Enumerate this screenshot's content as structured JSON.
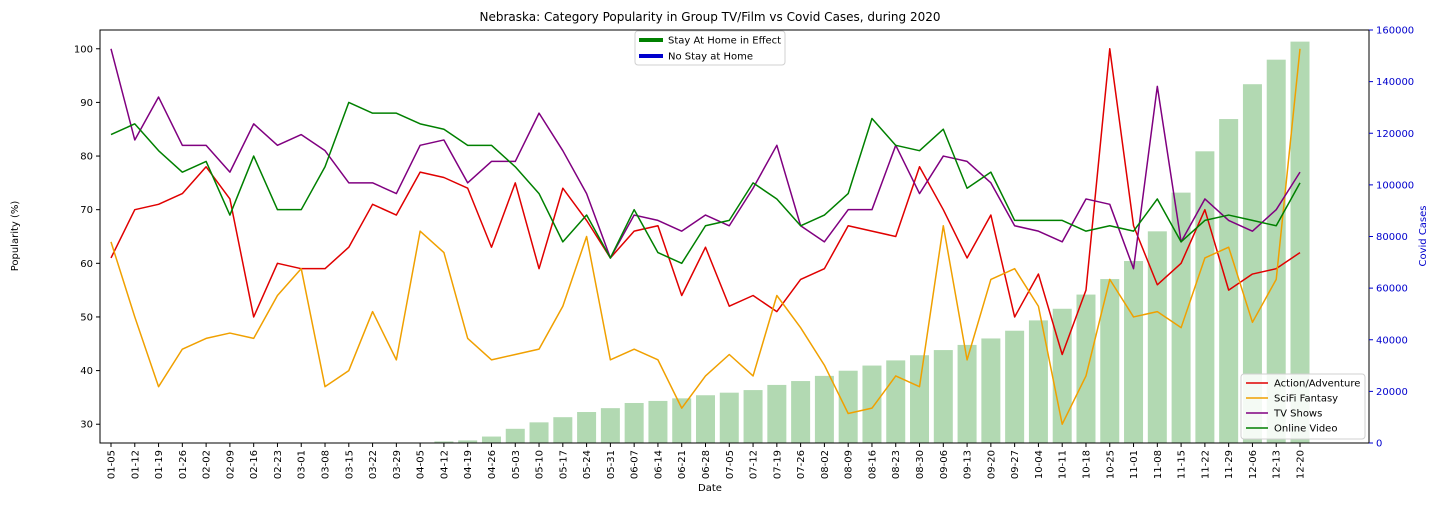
{
  "chart_data": {
    "type": "line",
    "title": "Nebraska: Category Popularity in Group TV/Film vs Covid Cases, during 2020",
    "xlabel": "Date",
    "ylabel": "Popularity (%)",
    "y2label": "Covid Cases",
    "ylim": [
      26.5,
      103.5
    ],
    "y2lim": [
      0,
      160000
    ],
    "yticks": [
      30,
      40,
      50,
      60,
      70,
      80,
      90,
      100
    ],
    "y2ticks": [
      0,
      20000,
      40000,
      60000,
      80000,
      100000,
      120000,
      140000,
      160000
    ],
    "grid": false,
    "categories": [
      "01-05",
      "01-12",
      "01-19",
      "01-26",
      "02-02",
      "02-09",
      "02-16",
      "02-23",
      "03-01",
      "03-08",
      "03-15",
      "03-22",
      "03-29",
      "04-05",
      "04-12",
      "04-19",
      "04-26",
      "05-03",
      "05-10",
      "05-17",
      "05-24",
      "05-31",
      "06-07",
      "06-14",
      "06-21",
      "06-28",
      "07-05",
      "07-12",
      "07-19",
      "07-26",
      "08-02",
      "08-09",
      "08-16",
      "08-23",
      "08-30",
      "09-06",
      "09-13",
      "09-20",
      "09-27",
      "10-04",
      "10-11",
      "10-18",
      "10-25",
      "11-01",
      "11-08",
      "11-15",
      "11-22",
      "11-29",
      "12-06",
      "12-13",
      "12-20"
    ],
    "series": [
      {
        "name": "Action/Adventure",
        "color": "#e00000",
        "values": [
          61,
          70,
          71,
          73,
          78,
          72,
          50,
          60,
          59,
          59,
          63,
          71,
          69,
          77,
          76,
          74,
          63,
          75,
          59,
          74,
          68,
          61,
          66,
          67,
          54,
          63,
          52,
          54,
          51,
          57,
          59,
          67,
          66,
          65,
          78,
          70,
          61,
          69,
          50,
          58,
          43,
          55,
          100,
          67,
          56,
          60,
          70,
          55,
          58,
          59,
          62
        ]
      },
      {
        "name": "SciFi Fantasy",
        "color": "#f0a000",
        "values": [
          64,
          50,
          37,
          44,
          46,
          47,
          46,
          54,
          59,
          37,
          40,
          51,
          42,
          66,
          62,
          46,
          42,
          43,
          44,
          52,
          65,
          42,
          44,
          42,
          33,
          39,
          43,
          39,
          54,
          48,
          41,
          32,
          33,
          39,
          37,
          67,
          42,
          57,
          59,
          52,
          30,
          39,
          57,
          50,
          51,
          48,
          61,
          63,
          49,
          57,
          100
        ]
      },
      {
        "name": "TV Shows",
        "color": "#800080",
        "values": [
          100,
          83,
          91,
          82,
          82,
          77,
          86,
          82,
          84,
          81,
          75,
          75,
          73,
          82,
          83,
          75,
          79,
          79,
          88,
          81,
          73,
          61,
          69,
          68,
          66,
          69,
          67,
          74,
          82,
          67,
          64,
          70,
          70,
          82,
          73,
          80,
          79,
          75,
          67,
          66,
          64,
          72,
          71,
          59,
          93,
          64,
          72,
          68,
          66,
          70,
          77
        ]
      },
      {
        "name": "Online Video",
        "color": "#008000",
        "values": [
          84,
          86,
          81,
          77,
          79,
          69,
          80,
          70,
          70,
          78,
          90,
          88,
          88,
          86,
          85,
          82,
          82,
          78,
          73,
          64,
          69,
          61,
          70,
          62,
          60,
          67,
          68,
          75,
          72,
          67,
          69,
          73,
          87,
          82,
          81,
          85,
          74,
          77,
          68,
          68,
          68,
          66,
          67,
          66,
          72,
          64,
          68,
          69,
          68,
          67,
          75
        ]
      }
    ],
    "bars": {
      "name": "Covid Cases",
      "color": "#b2d9b2",
      "values": [
        0,
        0,
        0,
        0,
        0,
        0,
        0,
        0,
        0,
        0,
        0,
        0,
        20,
        200,
        600,
        1000,
        2500,
        5500,
        8000,
        10000,
        12000,
        13500,
        15500,
        16300,
        17300,
        18500,
        19500,
        20500,
        22500,
        24000,
        26000,
        28000,
        30000,
        32000,
        34000,
        36000,
        38000,
        40500,
        43500,
        47500,
        52000,
        57500,
        63500,
        70500,
        82000,
        97000,
        113000,
        125500,
        139000,
        148500,
        155500
      ]
    },
    "legend_main": {
      "placement": "lower-right",
      "entries": [
        "Action/Adventure",
        "SciFi Fantasy",
        "TV Shows",
        "Online Video"
      ]
    },
    "legend_period": {
      "placement": "upper-center",
      "entries": [
        {
          "label": "Stay At Home in Effect",
          "color": "#008000"
        },
        {
          "label": "No Stay at Home",
          "color": "#0000cd"
        }
      ]
    },
    "secondary_axis_color": "#0000cd"
  }
}
